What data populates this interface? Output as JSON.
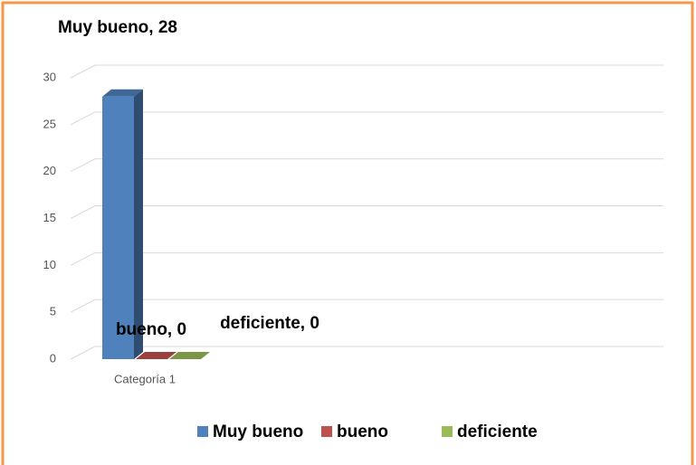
{
  "chart_data": {
    "type": "bar3d",
    "categories": [
      "Categoría 1"
    ],
    "series": [
      {
        "name": "Muy bueno",
        "color": "#4f81bd",
        "values": [
          28
        ],
        "value_labels": [
          "Muy bueno, 28"
        ]
      },
      {
        "name": "bueno",
        "color": "#c0504d",
        "values": [
          0
        ],
        "value_labels": [
          "bueno, 0"
        ]
      },
      {
        "name": "deficiente",
        "color": "#9bbb59",
        "values": [
          0
        ],
        "value_labels": [
          "deficiente, 0"
        ]
      }
    ],
    "ylim": [
      0,
      30
    ],
    "yticks": [
      0,
      5,
      10,
      15,
      20,
      25,
      30
    ],
    "grid": true,
    "legend": "bottom"
  }
}
